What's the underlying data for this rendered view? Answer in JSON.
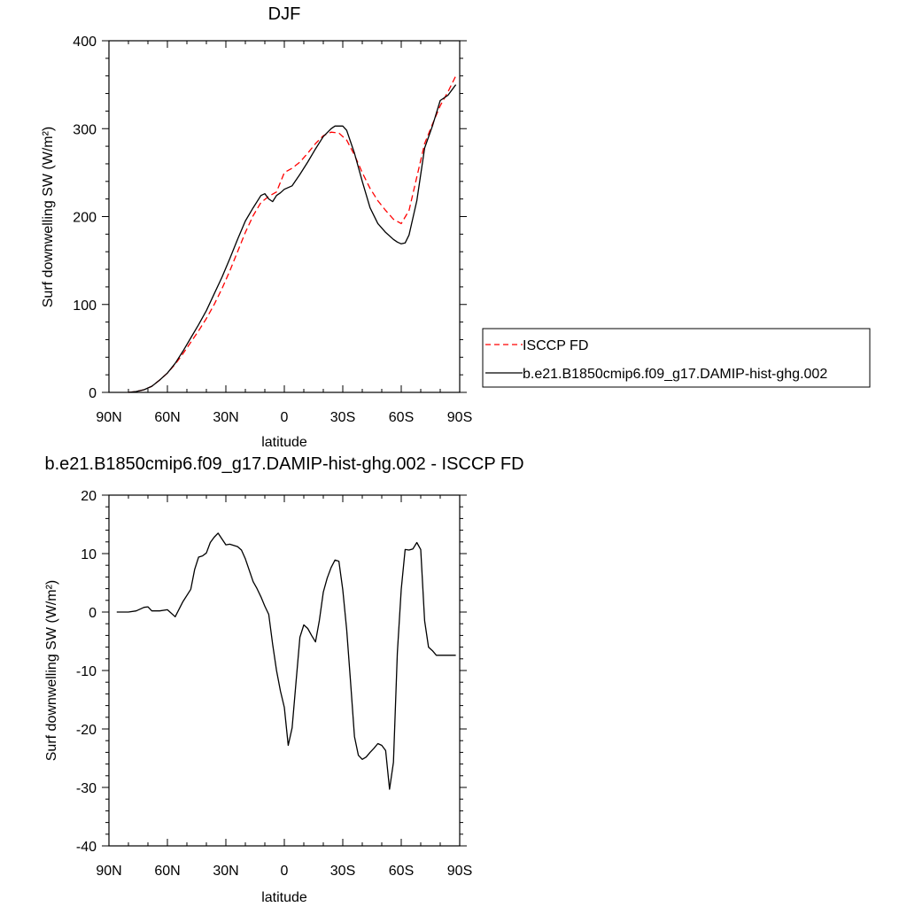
{
  "chart_data": [
    {
      "type": "line",
      "title": "DJF",
      "xlabel": "latitude",
      "ylabel": "Surf downwelling SW (W/m²)",
      "xlim": [
        -90,
        90
      ],
      "ylim": [
        0,
        400
      ],
      "x_tick_values": [
        -90,
        -60,
        -30,
        0,
        30,
        60,
        90
      ],
      "x_tick_labels": [
        "90N",
        "60N",
        "30N",
        "0",
        "30S",
        "60S",
        "90S"
      ],
      "y_tick_values": [
        0,
        100,
        200,
        300,
        400
      ],
      "y_tick_labels": [
        "0",
        "100",
        "200",
        "300",
        "400"
      ],
      "legend": "right-outside",
      "series": [
        {
          "name": "ISCCP FD",
          "color": "#ff0000",
          "style": "dashed",
          "x": [
            -80,
            -76,
            -72,
            -68,
            -64,
            -60,
            -56,
            -52,
            -48,
            -44,
            -40,
            -36,
            -32,
            -28,
            -24,
            -20,
            -16,
            -12,
            -8,
            -4,
            0,
            4,
            8,
            12,
            16,
            20,
            24,
            28,
            32,
            36,
            40,
            44,
            48,
            52,
            56,
            60,
            64,
            68,
            72,
            76,
            80,
            84,
            88
          ],
          "y": [
            0,
            1,
            3,
            7,
            14,
            22,
            32,
            44,
            57,
            70,
            84,
            100,
            118,
            138,
            160,
            182,
            201,
            216,
            223,
            228,
            250,
            255,
            262,
            272,
            283,
            292,
            296,
            295,
            287,
            270,
            250,
            232,
            218,
            207,
            197,
            192,
            207,
            245,
            283,
            305,
            326,
            342,
            360
          ]
        },
        {
          "name": "b.e21.B1850cmip6.f09_g17.DAMIP-hist-ghg.002",
          "color": "#000000",
          "style": "solid",
          "x": [
            -80,
            -76,
            -72,
            -68,
            -64,
            -60,
            -56,
            -52,
            -48,
            -44,
            -40,
            -36,
            -32,
            -28,
            -24,
            -20,
            -16,
            -12,
            -10,
            -8,
            -6,
            -4,
            -2,
            0,
            4,
            8,
            12,
            16,
            20,
            24,
            26,
            28,
            30,
            32,
            36,
            40,
            44,
            48,
            52,
            56,
            58,
            60,
            62,
            64,
            68,
            72,
            76,
            80,
            84,
            88
          ],
          "y": [
            0,
            1,
            3,
            7,
            14,
            22,
            33,
            47,
            62,
            77,
            93,
            112,
            131,
            152,
            174,
            195,
            210,
            224,
            226,
            220,
            217,
            224,
            227,
            231,
            235,
            248,
            262,
            277,
            291,
            300,
            303,
            303,
            303,
            298,
            272,
            240,
            210,
            192,
            182,
            174,
            171,
            169,
            170,
            179,
            218,
            278,
            303,
            332,
            338,
            350
          ]
        }
      ]
    },
    {
      "type": "line",
      "title": "b.e21.B1850cmip6.f09_g17.DAMIP-hist-ghg.002 - ISCCP FD",
      "xlabel": "latitude",
      "ylabel": "Surf downwelling SW (W/m²)",
      "xlim": [
        -90,
        90
      ],
      "ylim": [
        -40,
        20
      ],
      "x_tick_values": [
        -90,
        -60,
        -30,
        0,
        30,
        60,
        90
      ],
      "x_tick_labels": [
        "90N",
        "60N",
        "30N",
        "0",
        "30S",
        "60S",
        "90S"
      ],
      "y_tick_values": [
        -40,
        -30,
        -20,
        -10,
        0,
        10,
        20
      ],
      "y_tick_labels": [
        "-40",
        "-30",
        "-20",
        "-10",
        "0",
        "10",
        "20"
      ],
      "series": [
        {
          "color": "#000000",
          "style": "solid",
          "x": [
            -86,
            -80,
            -76,
            -72,
            -70,
            -68,
            -64,
            -60,
            -56,
            -52,
            -48,
            -46,
            -44,
            -42,
            -40,
            -38,
            -36,
            -34,
            -32,
            -30,
            -28,
            -24,
            -22,
            -20,
            -16,
            -14,
            -12,
            -10,
            -8,
            -6,
            -4,
            -2,
            0,
            2,
            4,
            6,
            8,
            10,
            12,
            14,
            16,
            18,
            20,
            22,
            24,
            26,
            28,
            30,
            32,
            34,
            36,
            38,
            40,
            42,
            44,
            46,
            48,
            50,
            52,
            54,
            56,
            58,
            60,
            62,
            64,
            66,
            68,
            70,
            72,
            74,
            76,
            78,
            80,
            82,
            84,
            86,
            88
          ],
          "y": [
            0,
            0,
            0.2,
            0.8,
            0.9,
            0.2,
            0.2,
            0.4,
            -0.8,
            1.8,
            3.9,
            7.3,
            9.4,
            9.6,
            10.1,
            11.9,
            12.8,
            13.5,
            12.5,
            11.5,
            11.6,
            11.2,
            10.6,
            9.1,
            5.2,
            4.0,
            2.6,
            1.0,
            -0.4,
            -5.5,
            -10.0,
            -13.5,
            -16.3,
            -22.8,
            -19.8,
            -12.0,
            -4.3,
            -2.2,
            -2.8,
            -4.0,
            -5.1,
            -1.4,
            3.4,
            5.8,
            7.6,
            8.9,
            8.7,
            3.8,
            -3.0,
            -12.0,
            -21.3,
            -24.5,
            -25.2,
            -24.8,
            -24.0,
            -23.3,
            -22.5,
            -22.8,
            -23.7,
            -30.3,
            -25.7,
            -7.0,
            3.9,
            10.7,
            10.6,
            10.8,
            11.9,
            10.7,
            -1.5,
            -6.0,
            -6.6,
            -7.4,
            -7.4,
            -7.4,
            -7.4,
            -7.4,
            -7.4
          ]
        }
      ]
    }
  ]
}
